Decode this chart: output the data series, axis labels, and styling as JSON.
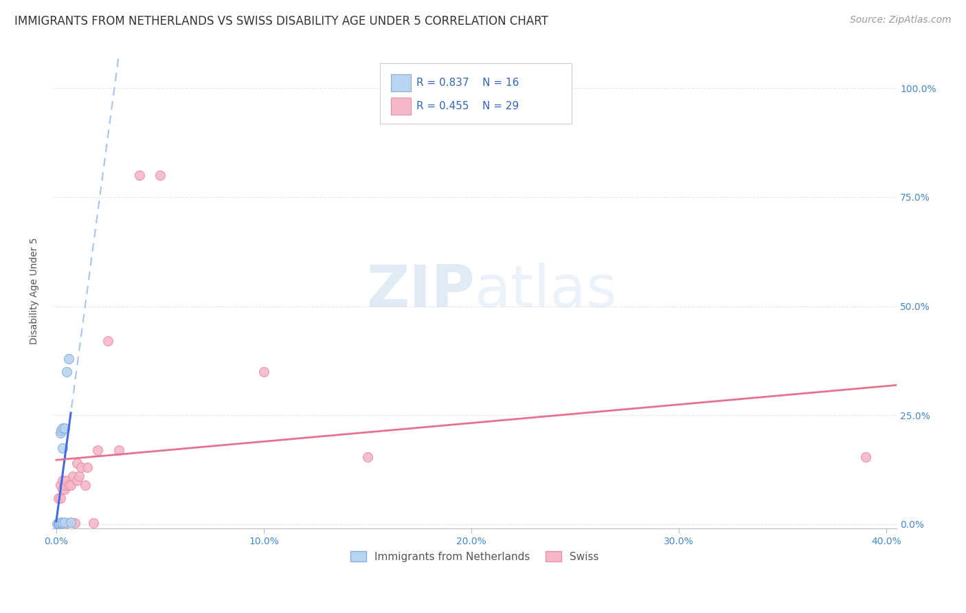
{
  "title": "IMMIGRANTS FROM NETHERLANDS VS SWISS DISABILITY AGE UNDER 5 CORRELATION CHART",
  "source": "Source: ZipAtlas.com",
  "ylabel": "Disability Age Under 5",
  "x_tick_labels": [
    "0.0%",
    "10.0%",
    "20.0%",
    "30.0%",
    "40.0%"
  ],
  "x_tick_values": [
    0.0,
    0.1,
    0.2,
    0.3,
    0.4
  ],
  "y_tick_labels": [
    "0.0%",
    "25.0%",
    "50.0%",
    "75.0%",
    "100.0%"
  ],
  "y_tick_values": [
    0.0,
    0.25,
    0.5,
    0.75,
    1.0
  ],
  "xlim": [
    -0.002,
    0.405
  ],
  "ylim": [
    -0.01,
    1.08
  ],
  "legend_bottom_labels": [
    "Immigrants from Netherlands",
    "Swiss"
  ],
  "blue_R": "R = 0.837",
  "blue_N": "N = 16",
  "pink_R": "R = 0.455",
  "pink_N": "N = 29",
  "blue_scatter_x": [
    0.0005,
    0.001,
    0.001,
    0.0015,
    0.002,
    0.002,
    0.002,
    0.0025,
    0.003,
    0.003,
    0.003,
    0.004,
    0.004,
    0.005,
    0.006,
    0.007
  ],
  "blue_scatter_y": [
    0.002,
    0.002,
    0.002,
    0.002,
    0.003,
    0.005,
    0.21,
    0.215,
    0.003,
    0.175,
    0.22,
    0.22,
    0.005,
    0.35,
    0.38,
    0.005
  ],
  "pink_scatter_x": [
    0.001,
    0.001,
    0.002,
    0.002,
    0.003,
    0.003,
    0.004,
    0.004,
    0.005,
    0.005,
    0.006,
    0.007,
    0.008,
    0.009,
    0.01,
    0.01,
    0.011,
    0.012,
    0.014,
    0.015,
    0.018,
    0.02,
    0.025,
    0.03,
    0.04,
    0.05,
    0.1,
    0.15,
    0.39
  ],
  "pink_scatter_y": [
    0.003,
    0.06,
    0.06,
    0.09,
    0.08,
    0.1,
    0.08,
    0.09,
    0.003,
    0.1,
    0.09,
    0.09,
    0.11,
    0.003,
    0.1,
    0.14,
    0.11,
    0.13,
    0.09,
    0.13,
    0.003,
    0.17,
    0.42,
    0.17,
    0.8,
    0.8,
    0.35,
    0.155,
    0.155
  ],
  "blue_line_color": "#4169E1",
  "blue_line_style": "-",
  "blue_dash_color": "#A8C4E8",
  "blue_dash_style": "--",
  "pink_line_color": "#E87090",
  "pink_line_style": "-",
  "blue_scatter_color": "#B8D4F0",
  "pink_scatter_color": "#F5B8C8",
  "blue_scatter_edge": "#85AEDD",
  "pink_scatter_edge": "#E890A8",
  "scatter_size": 100,
  "background_color": "#FFFFFF",
  "grid_color": "#E8E8E8",
  "title_fontsize": 12,
  "axis_label_fontsize": 10,
  "tick_fontsize": 10,
  "source_fontsize": 10
}
